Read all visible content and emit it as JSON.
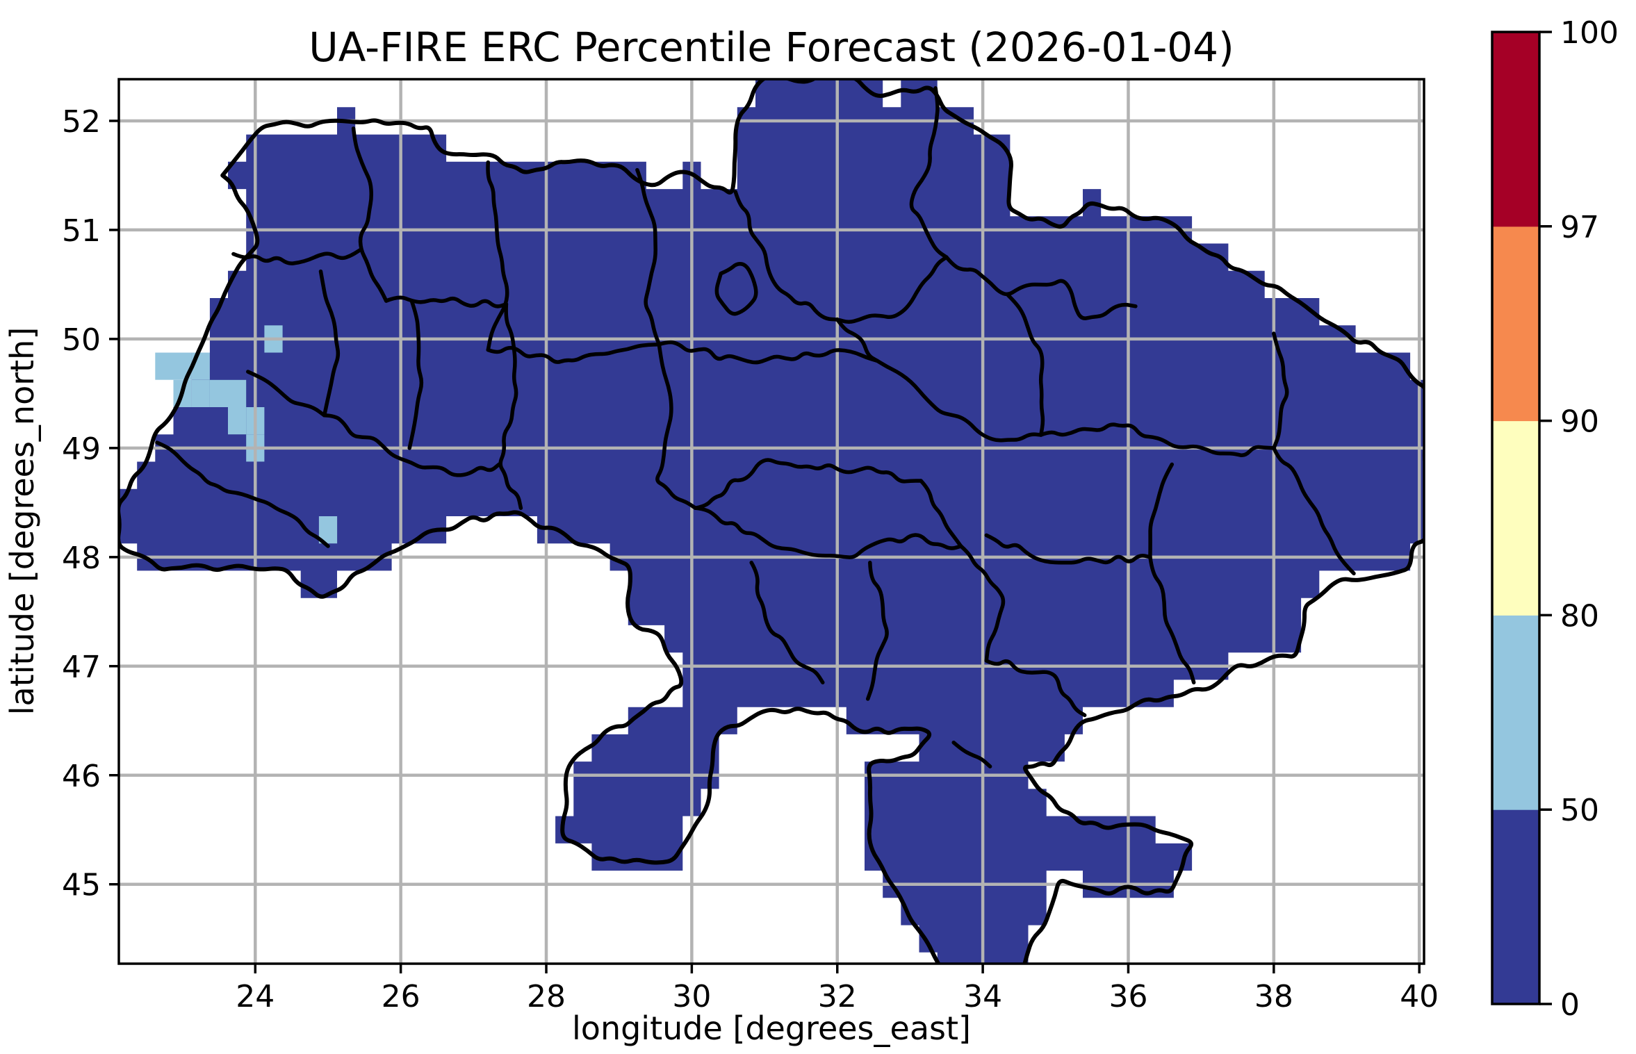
{
  "figure": {
    "title": "UA-FIRE ERC Percentile Forecast (2026-01-04)",
    "background": "#ffffff"
  },
  "chart_data": {
    "type": "heatmap",
    "subtype": "geographic raster map of Ukraine with oblast boundaries",
    "title": "UA-FIRE ERC Percentile Forecast (2026-01-04)",
    "xlabel": "longitude [degrees_east]",
    "ylabel": "latitude [degrees_north]",
    "xlim": [
      22.125,
      40.065
    ],
    "ylim": [
      44.272,
      52.382
    ],
    "xticks": [
      24,
      26,
      28,
      30,
      32,
      34,
      36,
      38,
      40
    ],
    "yticks": [
      45,
      46,
      47,
      48,
      49,
      50,
      51,
      52
    ],
    "grid": true,
    "grid_color": "#b3b3b3",
    "border_color": "#000000",
    "resolution_deg": 0.25,
    "base_percentile_band": "0-50",
    "base_fill_color": "#333a94",
    "anomaly_cells": {
      "percentile_band": "50-80",
      "color": "#94c6df",
      "cells": [
        [
          24.25,
          50.0
        ],
        [
          22.75,
          49.75
        ],
        [
          23.0,
          49.75
        ],
        [
          23.25,
          49.75
        ],
        [
          23.0,
          49.5
        ],
        [
          23.25,
          49.5
        ],
        [
          23.5,
          49.5
        ],
        [
          23.75,
          49.5
        ],
        [
          23.75,
          49.25
        ],
        [
          24.0,
          49.25
        ],
        [
          24.0,
          49.0
        ],
        [
          25.0,
          48.25
        ]
      ]
    },
    "colorbar": {
      "orientation": "vertical",
      "position": "right",
      "levels": [
        0,
        50,
        80,
        90,
        97,
        100
      ],
      "tick_labels": [
        "0",
        "50",
        "80",
        "90",
        "97",
        "100"
      ],
      "segment_colors_bottom_to_top": [
        "#333a94",
        "#94c6df",
        "#fefebe",
        "#f6894e",
        "#a50026"
      ],
      "spacing": "uniform"
    },
    "country_outline": [
      [
        23.55,
        51.5
      ],
      [
        24.1,
        51.95
      ],
      [
        25.2,
        52.0
      ],
      [
        26.4,
        51.95
      ],
      [
        26.55,
        51.72
      ],
      [
        27.3,
        51.68
      ],
      [
        27.7,
        51.52
      ],
      [
        28.3,
        51.62
      ],
      [
        29.05,
        51.58
      ],
      [
        29.35,
        51.42
      ],
      [
        30.0,
        51.52
      ],
      [
        30.55,
        51.32
      ],
      [
        30.65,
        52.05
      ],
      [
        31.0,
        52.4
      ],
      [
        32.25,
        52.4
      ],
      [
        32.55,
        52.22
      ],
      [
        33.25,
        52.32
      ],
      [
        33.6,
        52.05
      ],
      [
        34.1,
        51.85
      ],
      [
        34.4,
        51.65
      ],
      [
        34.35,
        51.2
      ],
      [
        35.1,
        51.02
      ],
      [
        35.45,
        51.25
      ],
      [
        36.55,
        51.08
      ],
      [
        37.4,
        50.65
      ],
      [
        38.2,
        50.4
      ],
      [
        39.0,
        50.05
      ],
      [
        39.75,
        49.8
      ],
      [
        40.1,
        49.55
      ],
      [
        40.1,
        48.15
      ],
      [
        39.9,
        48.12
      ],
      [
        39.88,
        47.9
      ],
      [
        39.4,
        47.82
      ],
      [
        38.8,
        47.75
      ],
      [
        38.42,
        47.55
      ],
      [
        38.3,
        47.08
      ],
      [
        37.52,
        47.02
      ],
      [
        37.25,
        46.85
      ],
      [
        36.55,
        46.72
      ],
      [
        35.82,
        46.58
      ],
      [
        35.38,
        46.5
      ],
      [
        34.95,
        46.08
      ],
      [
        34.55,
        46.08
      ],
      [
        35.05,
        45.68
      ],
      [
        35.35,
        45.55
      ],
      [
        36.05,
        45.55
      ],
      [
        36.9,
        45.38
      ],
      [
        36.58,
        44.92
      ],
      [
        35.58,
        44.95
      ],
      [
        35.05,
        45.05
      ],
      [
        34.55,
        44.2
      ],
      [
        33.45,
        44.2
      ],
      [
        32.48,
        45.3
      ],
      [
        32.42,
        46.1
      ],
      [
        33.05,
        46.18
      ],
      [
        33.3,
        46.38
      ],
      [
        32.25,
        46.42
      ],
      [
        31.85,
        46.58
      ],
      [
        31.45,
        46.62
      ],
      [
        30.8,
        46.52
      ],
      [
        30.35,
        46.38
      ],
      [
        30.25,
        45.8
      ],
      [
        29.75,
        45.22
      ],
      [
        28.72,
        45.22
      ],
      [
        28.22,
        45.42
      ],
      [
        28.28,
        46.05
      ],
      [
        28.95,
        46.45
      ],
      [
        29.2,
        46.52
      ],
      [
        29.88,
        46.82
      ],
      [
        29.58,
        47.28
      ],
      [
        29.15,
        47.42
      ],
      [
        29.15,
        47.92
      ],
      [
        28.4,
        48.12
      ],
      [
        27.6,
        48.42
      ],
      [
        26.85,
        48.32
      ],
      [
        26.2,
        48.15
      ],
      [
        25.5,
        47.88
      ],
      [
        24.9,
        47.62
      ],
      [
        24.45,
        47.88
      ],
      [
        23.3,
        47.92
      ],
      [
        22.7,
        47.88
      ],
      [
        22.1,
        48.12
      ],
      [
        22.1,
        48.48
      ],
      [
        22.55,
        48.95
      ],
      [
        22.62,
        49.15
      ],
      [
        22.9,
        49.35
      ],
      [
        23.3,
        50.0
      ],
      [
        23.58,
        50.42
      ],
      [
        23.95,
        50.8
      ],
      [
        24.05,
        50.88
      ],
      [
        23.88,
        51.2
      ]
    ],
    "oblast_borders": [
      [
        [
          25.35,
          51.93
        ],
        [
          25.6,
          51.3
        ],
        [
          25.45,
          50.82
        ],
        [
          25.8,
          50.35
        ]
      ],
      [
        [
          27.2,
          51.62
        ],
        [
          27.32,
          51.0
        ],
        [
          27.45,
          50.32
        ],
        [
          27.2,
          49.9
        ]
      ],
      [
        [
          29.25,
          51.55
        ],
        [
          29.5,
          50.9
        ],
        [
          29.35,
          50.32
        ],
        [
          29.55,
          49.95
        ]
      ],
      [
        [
          30.6,
          51.35
        ],
        [
          30.9,
          50.9
        ],
        [
          31.2,
          50.45
        ],
        [
          32.0,
          50.18
        ],
        [
          32.9,
          50.25
        ],
        [
          33.5,
          50.75
        ]
      ],
      [
        [
          33.35,
          52.3
        ],
        [
          33.28,
          51.6
        ],
        [
          33.0,
          51.2
        ],
        [
          33.5,
          50.75
        ]
      ],
      [
        [
          33.5,
          50.75
        ],
        [
          34.35,
          50.4
        ],
        [
          35.1,
          50.55
        ],
        [
          35.35,
          50.18
        ],
        [
          36.1,
          50.3
        ]
      ],
      [
        [
          23.7,
          50.78
        ],
        [
          24.6,
          50.7
        ],
        [
          25.45,
          50.82
        ]
      ],
      [
        [
          25.8,
          50.35
        ],
        [
          26.15,
          50.35
        ],
        [
          27.45,
          50.32
        ]
      ],
      [
        [
          24.9,
          50.62
        ],
        [
          25.15,
          49.85
        ],
        [
          24.95,
          49.3
        ]
      ],
      [
        [
          26.15,
          50.35
        ],
        [
          26.3,
          49.6
        ],
        [
          26.12,
          49.0
        ]
      ],
      [
        [
          27.45,
          50.32
        ],
        [
          27.6,
          49.5
        ],
        [
          27.35,
          48.85
        ],
        [
          27.65,
          48.45
        ]
      ],
      [
        [
          24.95,
          49.3
        ],
        [
          26.0,
          48.9
        ],
        [
          26.85,
          48.75
        ],
        [
          27.35,
          48.85
        ]
      ],
      [
        [
          23.9,
          49.7
        ],
        [
          24.65,
          49.4
        ],
        [
          24.95,
          49.3
        ]
      ],
      [
        [
          22.65,
          49.05
        ],
        [
          23.6,
          48.6
        ],
        [
          24.45,
          48.4
        ],
        [
          25.0,
          48.1
        ]
      ],
      [
        [
          29.55,
          49.95
        ],
        [
          29.72,
          49.3
        ],
        [
          29.5,
          48.7
        ],
        [
          30.05,
          48.45
        ]
      ],
      [
        [
          27.2,
          49.9
        ],
        [
          28.4,
          49.8
        ],
        [
          29.55,
          49.95
        ]
      ],
      [
        [
          29.55,
          49.95
        ],
        [
          30.9,
          49.78
        ],
        [
          31.95,
          49.9
        ],
        [
          32.55,
          49.8
        ]
      ],
      [
        [
          32.0,
          50.18
        ],
        [
          32.55,
          49.8
        ],
        [
          33.3,
          49.4
        ],
        [
          34.05,
          49.1
        ],
        [
          34.8,
          49.12
        ]
      ],
      [
        [
          30.05,
          48.45
        ],
        [
          31.05,
          48.9
        ],
        [
          32.3,
          48.8
        ],
        [
          33.15,
          48.7
        ]
      ],
      [
        [
          30.05,
          48.45
        ],
        [
          31.1,
          48.1
        ],
        [
          32.1,
          48.0
        ],
        [
          33.0,
          48.2
        ],
        [
          33.7,
          48.1
        ]
      ],
      [
        [
          30.82,
          47.95
        ],
        [
          31.1,
          47.3
        ],
        [
          31.8,
          46.85
        ]
      ],
      [
        [
          32.45,
          47.95
        ],
        [
          32.7,
          47.3
        ],
        [
          32.42,
          46.7
        ]
      ],
      [
        [
          33.7,
          48.1
        ],
        [
          34.3,
          47.6
        ],
        [
          34.05,
          47.05
        ]
      ],
      [
        [
          33.15,
          48.7
        ],
        [
          33.7,
          48.1
        ]
      ],
      [
        [
          34.8,
          49.12
        ],
        [
          35.9,
          49.2
        ],
        [
          37.2,
          48.95
        ],
        [
          38.0,
          49.0
        ]
      ],
      [
        [
          34.35,
          50.4
        ],
        [
          34.8,
          49.9
        ],
        [
          34.8,
          49.12
        ]
      ],
      [
        [
          38.0,
          50.05
        ],
        [
          38.2,
          49.5
        ],
        [
          38.0,
          49.0
        ]
      ],
      [
        [
          38.0,
          49.0
        ],
        [
          38.5,
          48.5
        ],
        [
          38.85,
          48.05
        ],
        [
          39.1,
          47.85
        ]
      ],
      [
        [
          34.05,
          48.2
        ],
        [
          35.0,
          47.95
        ],
        [
          36.3,
          48.0
        ]
      ],
      [
        [
          36.6,
          48.85
        ],
        [
          36.3,
          48.3
        ],
        [
          36.3,
          48.0
        ]
      ],
      [
        [
          36.3,
          48.0
        ],
        [
          36.6,
          47.3
        ],
        [
          36.9,
          46.85
        ]
      ],
      [
        [
          34.05,
          47.05
        ],
        [
          34.9,
          46.95
        ],
        [
          35.4,
          46.55
        ]
      ],
      [
        [
          33.6,
          46.3
        ],
        [
          34.1,
          46.08
        ]
      ],
      [
        [
          30.4,
          50.6
        ],
        [
          30.75,
          50.68
        ],
        [
          30.9,
          50.4
        ],
        [
          30.55,
          50.22
        ],
        [
          30.32,
          50.42
        ],
        [
          30.4,
          50.6
        ]
      ]
    ]
  }
}
